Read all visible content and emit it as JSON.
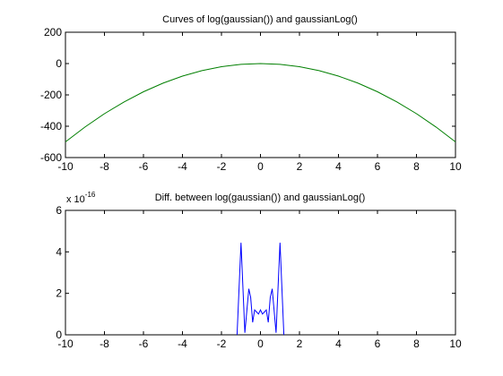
{
  "chart_data": [
    {
      "type": "line",
      "title": "Curves of log(gaussian()) and gaussianLog()",
      "xlim": [
        -10,
        10
      ],
      "ylim": [
        -600,
        200
      ],
      "xticks": [
        "-10",
        "-8",
        "-6",
        "-4",
        "-2",
        "0",
        "2",
        "4",
        "6",
        "8",
        "10"
      ],
      "yticks": [
        "-600",
        "-400",
        "-200",
        "0",
        "200"
      ],
      "grid": false,
      "series": [
        {
          "color": "#007f00",
          "x": [
            -10,
            -9,
            -8,
            -7,
            -6,
            -5,
            -4,
            -3,
            -2,
            -1,
            0,
            1,
            2,
            3,
            4,
            5,
            6,
            7,
            8,
            9,
            10
          ],
          "y": [
            -500,
            -405,
            -320,
            -245,
            -180,
            -125,
            -80,
            -45,
            -20,
            -5,
            0,
            -5,
            -20,
            -45,
            -80,
            -125,
            -180,
            -245,
            -320,
            -405,
            -500
          ]
        }
      ]
    },
    {
      "type": "line",
      "title": "Diff. between log(gaussian()) and gaussianLog()",
      "xlim": [
        -10,
        10
      ],
      "ylim": [
        0,
        6
      ],
      "xticks": [
        "-10",
        "-8",
        "-6",
        "-4",
        "-2",
        "0",
        "2",
        "4",
        "6",
        "8",
        "10"
      ],
      "yticks": [
        "0",
        "2",
        "4",
        "6"
      ],
      "y_scale_label": {
        "base": "x 10",
        "exponent": "-16"
      },
      "grid": false,
      "series": [
        {
          "color": "#0000ff",
          "x": [
            -1.2,
            -1.0,
            -0.8,
            -0.6,
            -0.5,
            -0.4,
            -0.3,
            -0.2,
            -0.1,
            0.0,
            0.1,
            0.2,
            0.3,
            0.4,
            0.5,
            0.6,
            0.8,
            1.0,
            1.2
          ],
          "y": [
            0,
            4.44,
            0.1,
            2.22,
            1.8,
            0.6,
            1.2,
            1.1,
            1.0,
            1.2,
            1.0,
            1.1,
            1.2,
            0.6,
            1.8,
            2.22,
            0.1,
            4.44,
            0
          ]
        }
      ]
    }
  ]
}
